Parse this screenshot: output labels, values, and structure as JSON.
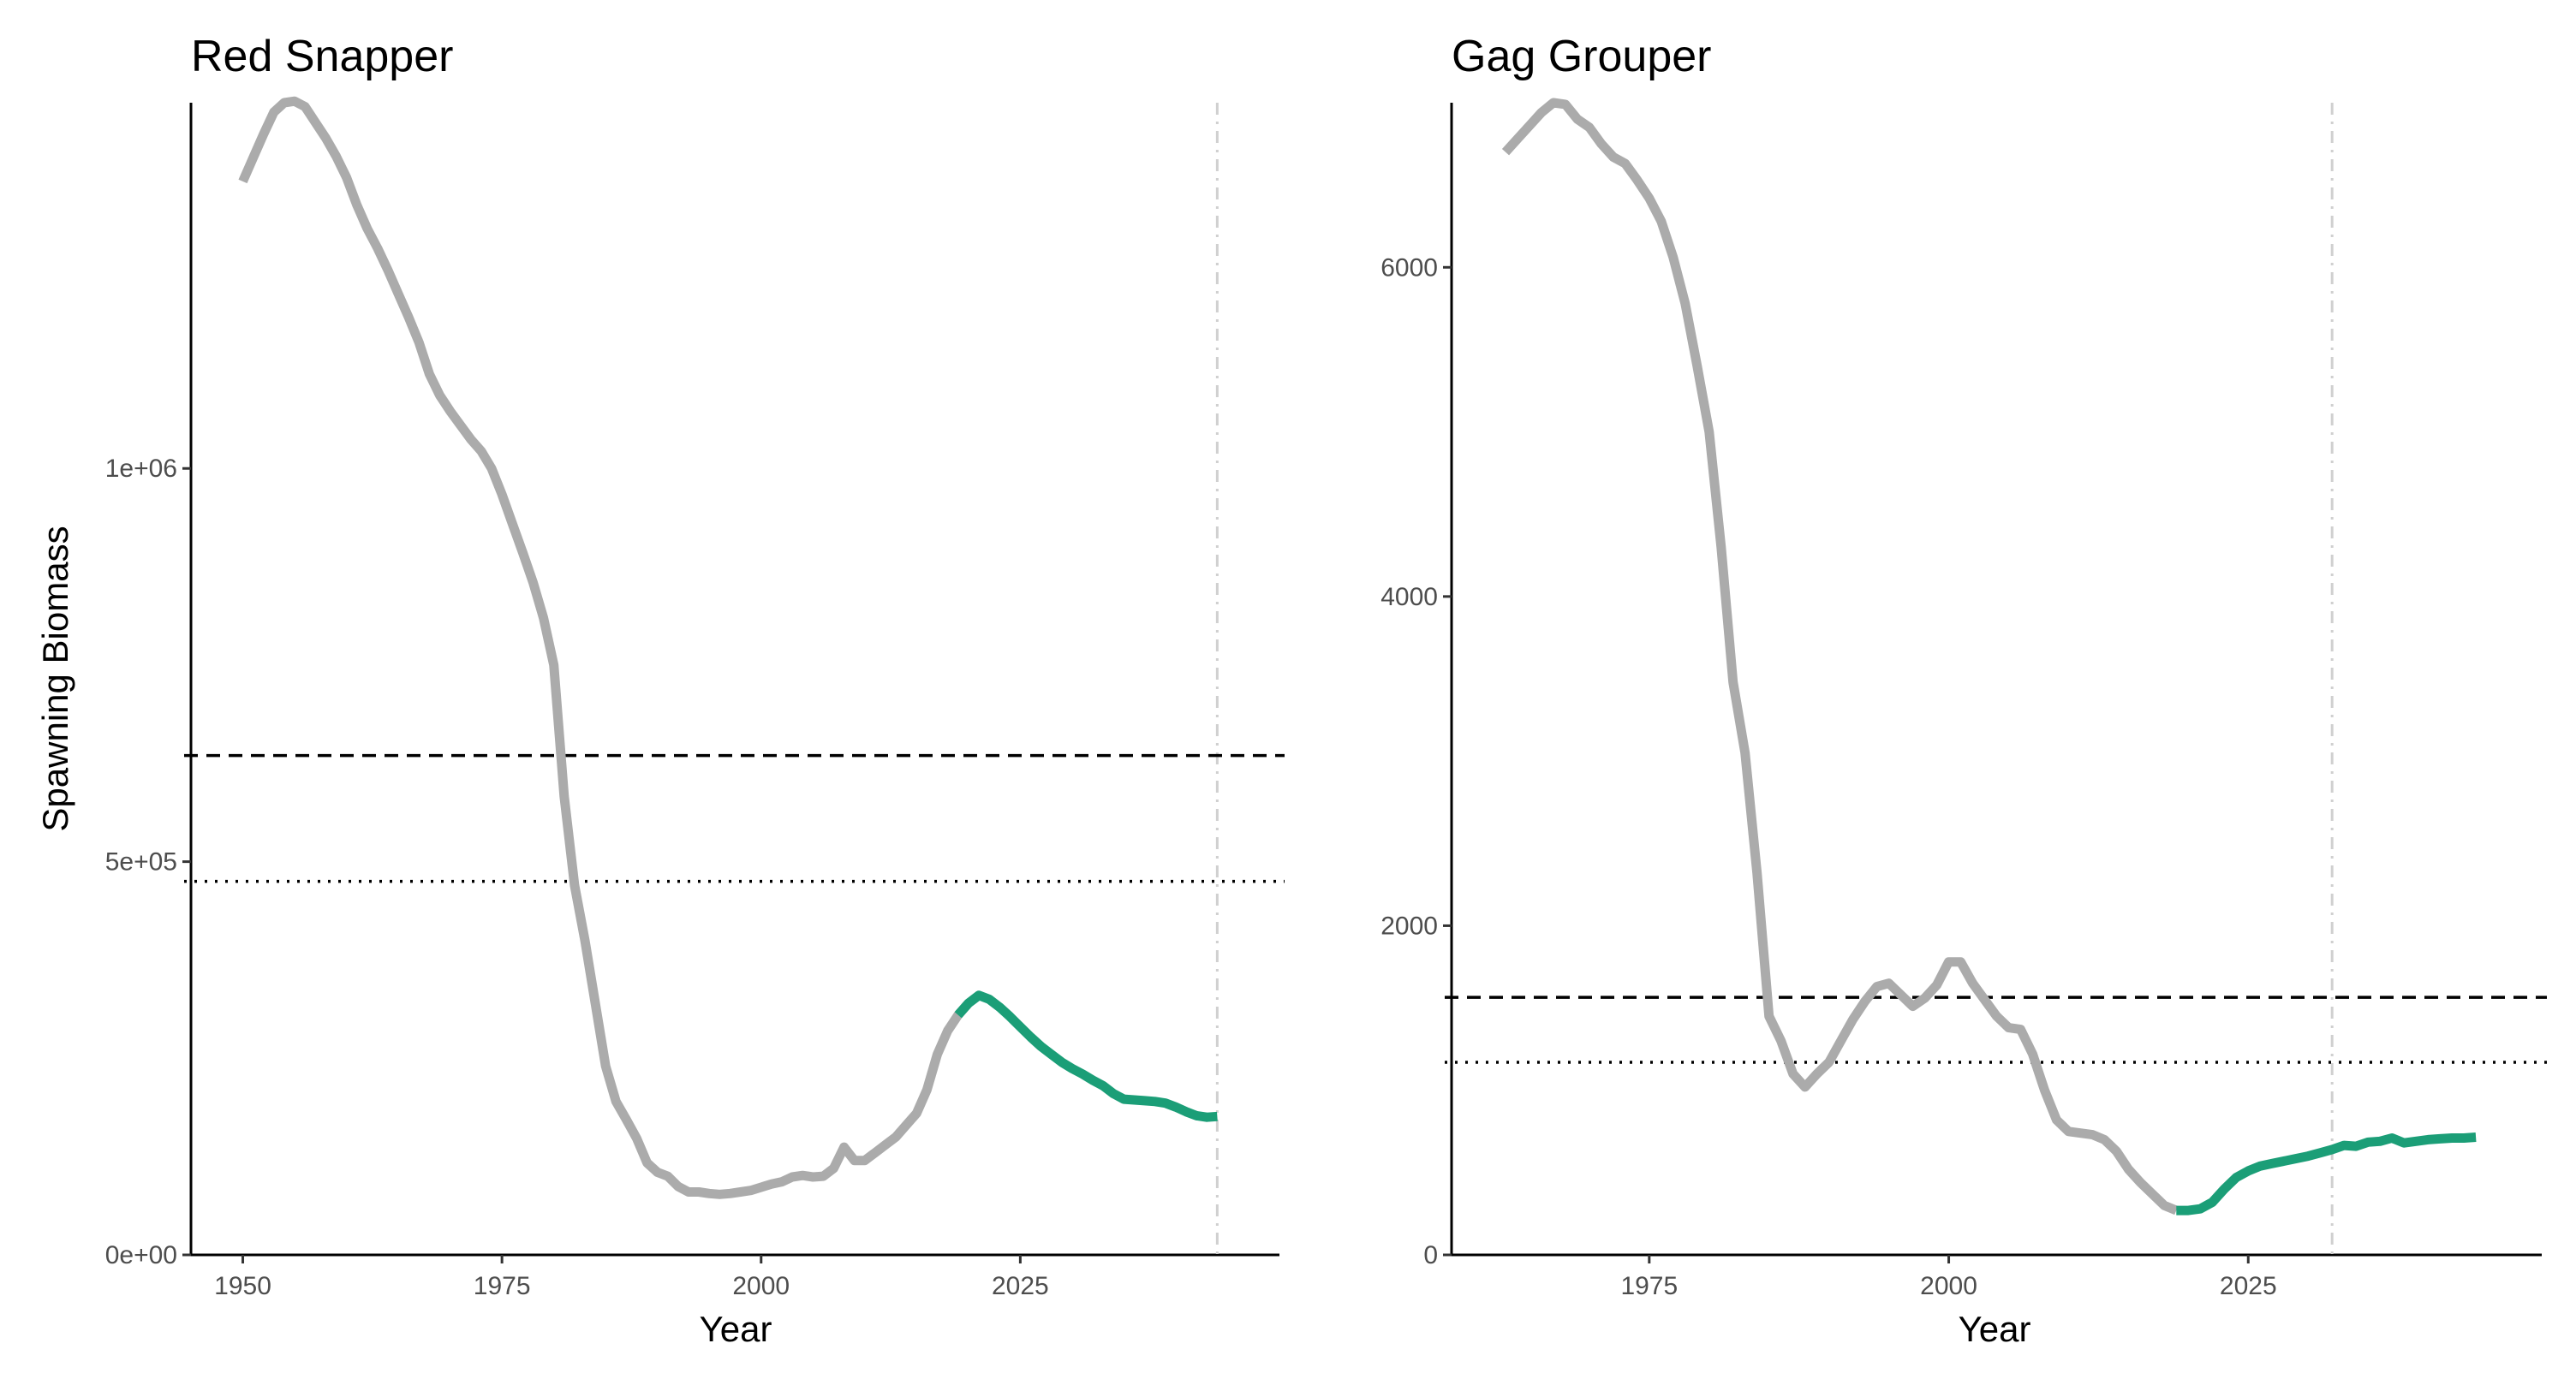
{
  "figure": {
    "ylabel": "Spawning Biomass",
    "colors": {
      "historical": "#ababab",
      "projected": "#1b9e77",
      "reference": "#000000",
      "terminal_year": "#d0d0d0"
    }
  },
  "chart_data": [
    {
      "type": "line",
      "title": "Red Snapper",
      "xlabel": "Year",
      "ylabel": "Spawning Biomass",
      "xlim": [
        1945,
        2050
      ],
      "ylim": [
        0,
        1465000
      ],
      "x_ticks": [
        1950,
        1975,
        2000,
        2025
      ],
      "y_ticks": [
        {
          "value": 0,
          "label": "0e+00"
        },
        {
          "value": 500000,
          "label": "5e+05"
        },
        {
          "value": 1000000,
          "label": "1e+06"
        }
      ],
      "reference_lines": [
        {
          "style": "dashed",
          "value": 635000
        },
        {
          "style": "dotted",
          "value": 475000
        }
      ],
      "terminal_year": 2044,
      "grid": false,
      "series": [
        {
          "style": "historical",
          "x": [
            1950,
            1951,
            1952,
            1953,
            1954,
            1955,
            1956,
            1957,
            1958,
            1959,
            1960,
            1961,
            1962,
            1963,
            1964,
            1965,
            1966,
            1967,
            1968,
            1969,
            1970,
            1971,
            1972,
            1973,
            1974,
            1975,
            1976,
            1977,
            1978,
            1979,
            1980,
            1981,
            1982,
            1983,
            1984,
            1985,
            1986,
            1987,
            1988,
            1989,
            1990,
            1991,
            1992,
            1993,
            1994,
            1995,
            1996,
            1997,
            1998,
            1999,
            2000,
            2001,
            2002,
            2003,
            2004,
            2005,
            2006,
            2007,
            2008,
            2009,
            2010,
            2011,
            2012,
            2013,
            2014,
            2015,
            2016,
            2017,
            2018,
            2019,
            2020
          ],
          "y": [
            1365000,
            1395000,
            1425000,
            1453000,
            1465000,
            1467000,
            1460000,
            1440000,
            1420000,
            1397000,
            1370000,
            1335000,
            1305000,
            1280000,
            1252000,
            1222000,
            1192000,
            1160000,
            1120000,
            1093000,
            1073000,
            1055000,
            1037000,
            1022000,
            1000000,
            967000,
            930000,
            893000,
            855000,
            810000,
            750000,
            583000,
            470000,
            400000,
            320000,
            240000,
            195000,
            172000,
            148000,
            117000,
            105000,
            100000,
            87000,
            80000,
            80000,
            78000,
            77000,
            78000,
            80000,
            82000,
            86000,
            90000,
            93000,
            99000,
            101000,
            99000,
            100000,
            110000,
            137000,
            120000,
            120000,
            130000,
            140000,
            150000,
            165000,
            180000,
            210000,
            255000,
            285000,
            305000,
            320000
          ]
        },
        {
          "style": "projected",
          "x": [
            2019,
            2020,
            2021,
            2022,
            2023,
            2024,
            2025,
            2026,
            2027,
            2028,
            2029,
            2030,
            2031,
            2032,
            2033,
            2034,
            2035,
            2036,
            2037,
            2038,
            2039,
            2040,
            2041,
            2042,
            2043,
            2044
          ],
          "y": [
            305000,
            320000,
            330000,
            325000,
            315000,
            303000,
            290000,
            277000,
            265000,
            255000,
            245000,
            237000,
            230000,
            222000,
            215000,
            205000,
            198000,
            197000,
            196000,
            195000,
            193000,
            188000,
            182000,
            177000,
            175000,
            176000
          ]
        }
      ]
    },
    {
      "type": "line",
      "title": "Gag Grouper",
      "xlabel": "Year",
      "ylabel": "",
      "xlim": [
        1958.5,
        2049.5
      ],
      "ylim": [
        0,
        7000
      ],
      "x_ticks": [
        1975,
        2000,
        2025
      ],
      "y_ticks": [
        {
          "value": 0,
          "label": "0"
        },
        {
          "value": 2000,
          "label": "2000"
        },
        {
          "value": 4000,
          "label": "4000"
        },
        {
          "value": 6000,
          "label": "6000"
        }
      ],
      "reference_lines": [
        {
          "style": "dashed",
          "value": 1565
        },
        {
          "style": "dotted",
          "value": 1170
        }
      ],
      "terminal_year": 2032,
      "grid": false,
      "series": [
        {
          "style": "historical",
          "x": [
            1963,
            1964,
            1965,
            1966,
            1967,
            1968,
            1969,
            1970,
            1971,
            1972,
            1973,
            1974,
            1975,
            1976,
            1977,
            1978,
            1979,
            1980,
            1981,
            1982,
            1983,
            1984,
            1985,
            1986,
            1987,
            1988,
            1989,
            1990,
            1991,
            1992,
            1993,
            1994,
            1995,
            1996,
            1997,
            1998,
            1999,
            2000,
            2001,
            2002,
            2003,
            2004,
            2005,
            2006,
            2007,
            2008,
            2009,
            2010,
            2011,
            2012,
            2013,
            2014,
            2015,
            2016,
            2017,
            2018,
            2019
          ],
          "y": [
            6700,
            6780,
            6860,
            6940,
            7000,
            6990,
            6900,
            6850,
            6750,
            6670,
            6630,
            6530,
            6420,
            6280,
            6060,
            5780,
            5400,
            5000,
            4300,
            3480,
            3050,
            2320,
            1450,
            1300,
            1100,
            1020,
            1100,
            1170,
            1300,
            1430,
            1540,
            1630,
            1650,
            1580,
            1510,
            1560,
            1640,
            1780,
            1780,
            1650,
            1550,
            1450,
            1380,
            1370,
            1220,
            1000,
            820,
            750,
            740,
            730,
            700,
            630,
            520,
            440,
            370,
            300,
            270
          ]
        },
        {
          "style": "projected",
          "x": [
            2019,
            2020,
            2021,
            2022,
            2023,
            2024,
            2025,
            2026,
            2027,
            2028,
            2029,
            2030,
            2031,
            2032,
            2033,
            2034,
            2035,
            2036,
            2037,
            2038,
            2039,
            2040,
            2041,
            2042,
            2043,
            2044
          ],
          "y": [
            270,
            270,
            280,
            320,
            400,
            470,
            510,
            540,
            555,
            570,
            585,
            600,
            620,
            640,
            665,
            660,
            685,
            690,
            710,
            680,
            690,
            700,
            705,
            710,
            710,
            715
          ]
        }
      ]
    }
  ]
}
